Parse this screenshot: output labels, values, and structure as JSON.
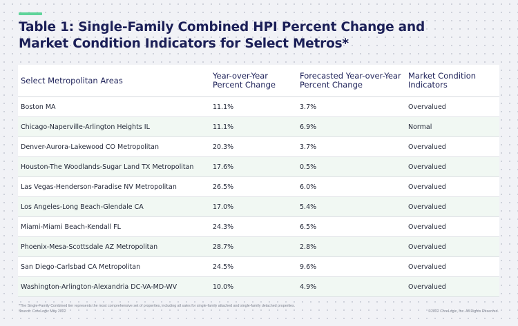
{
  "title": "Table 1: Single-Family Combined HPI Percent Change and Market Condition Indicators for Select Metros*",
  "columns": [
    "Select Metropolitan Areas",
    "Year-over-Year Percent Change",
    "Forecasted Year-over-Year Percent Change",
    "Market Condition Indicators"
  ],
  "rows": [
    [
      "Boston MA",
      "11.1%",
      "3.7%",
      "Overvalued"
    ],
    [
      "Chicago-Naperville-Arlington Heights IL",
      "11.1%",
      "6.9%",
      "Normal"
    ],
    [
      "Denver-Aurora-Lakewood CO Metropolitan",
      "20.3%",
      "3.7%",
      "Overvalued"
    ],
    [
      "Houston-The Woodlands-Sugar Land TX Metropolitan",
      "17.6%",
      "0.5%",
      "Overvalued"
    ],
    [
      "Las Vegas-Henderson-Paradise NV Metropolitan",
      "26.5%",
      "6.0%",
      "Overvalued"
    ],
    [
      "Los Angeles-Long Beach-Glendale CA",
      "17.0%",
      "5.4%",
      "Overvalued"
    ],
    [
      "Miami-Miami Beach-Kendall FL",
      "24.3%",
      "6.5%",
      "Overvalued"
    ],
    [
      "Phoenix-Mesa-Scottsdale AZ Metropolitan",
      "28.7%",
      "2.8%",
      "Overvalued"
    ],
    [
      "San Diego-Carlsbad CA Metropolitan",
      "24.5%",
      "9.6%",
      "Overvalued"
    ],
    [
      "Washington-Arlington-Alexandria DC-VA-MD-WV",
      "10.0%",
      "4.9%",
      "Overvalued"
    ]
  ],
  "footnote": "*The Single-Family Combined tier represents the most comprehensive set of properties, including all sales for single-family attached and single-family detached properties.",
  "source": "Source: CoreLogic May 2022",
  "copyright": "©2022 CoreLogic, Inc. All Rights Reserved.",
  "colors": {
    "accent": "#5fd49a",
    "title": "#1b1f57",
    "row_alt": "#f1f8f3"
  }
}
